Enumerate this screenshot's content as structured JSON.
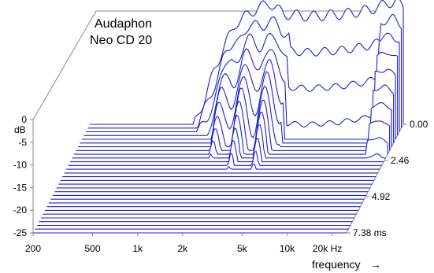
{
  "chart_data": {
    "type": "waterfall",
    "title": [
      "Audaphon",
      "Neo CD 20"
    ],
    "x_axis": {
      "label": "frequency",
      "arrow": "→",
      "scale": "log",
      "range": [
        200,
        25000
      ],
      "ticks": [
        "200",
        "500",
        "1k",
        "2k",
        "5k",
        "10k",
        "20k Hz"
      ],
      "tick_values": [
        200,
        500,
        1000,
        2000,
        5000,
        10000,
        20000
      ]
    },
    "y_axis": {
      "unit": "dB",
      "range": [
        -26,
        2
      ],
      "ticks": [
        "0",
        "-5",
        "-10",
        "-15",
        "-20",
        "-25"
      ],
      "tick_values": [
        0,
        -5,
        -10,
        -15,
        -20,
        -25
      ]
    },
    "z_axis": {
      "unit": "ms",
      "range": [
        0,
        7.38
      ],
      "ticks": [
        "0.00",
        "2.46",
        "4.92",
        "7.38 ms"
      ],
      "tick_values": [
        0,
        2.46,
        4.92,
        7.38
      ],
      "slices": 30
    },
    "envelope": [
      {
        "f": 200,
        "db": -26
      },
      {
        "f": 1000,
        "db": -26
      },
      {
        "f": 1180,
        "db": -20
      },
      {
        "f": 1350,
        "db": -14
      },
      {
        "f": 1600,
        "db": -8
      },
      {
        "f": 1900,
        "db": -3
      },
      {
        "f": 2300,
        "db": -1
      },
      {
        "f": 2700,
        "db": 0.5
      },
      {
        "f": 3200,
        "db": 1.5
      },
      {
        "f": 4000,
        "db": -1
      },
      {
        "f": 6000,
        "db": -1.5
      },
      {
        "f": 10000,
        "db": -1
      },
      {
        "f": 15000,
        "db": 0
      },
      {
        "f": 20000,
        "db": 1.5
      },
      {
        "f": 22000,
        "db": 2
      },
      {
        "f": 25000,
        "db": 0.5
      }
    ]
  }
}
